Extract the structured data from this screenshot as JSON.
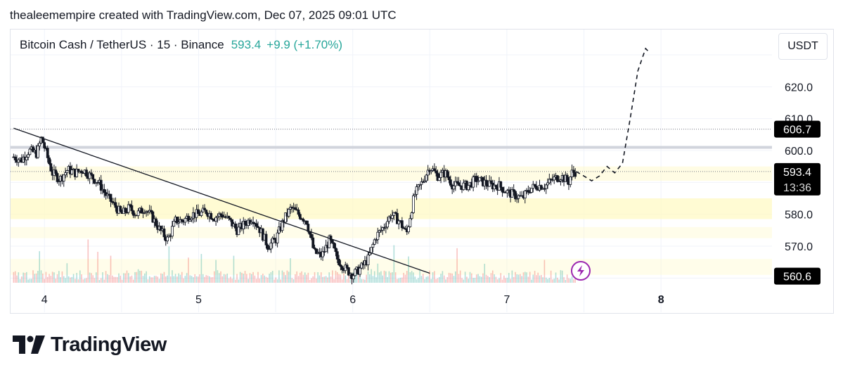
{
  "attribution": "thealeemempire created with TradingView.com, Dec 07, 2025 09:01 UTC",
  "legend": {
    "symbol": "Bitcoin Cash / TetherUS · 15 · Binance",
    "price": "593.4",
    "change": "+9.9 (+1.70%)"
  },
  "currency": "USDT",
  "brand": "TradingView",
  "colors": {
    "up": "#26a69a",
    "down": "#ef5350",
    "zone": "#fff9c4",
    "tag": "#000000",
    "signal": "#9c27b0"
  },
  "chart_data": {
    "type": "candlestick",
    "symbol": "BCHUSDT",
    "interval": "15",
    "exchange": "Binance",
    "x_ticks": [
      "4",
      "5",
      "6",
      "7",
      "8"
    ],
    "y_ticks": [
      "620.0",
      "610.0",
      "600.0",
      "580.0",
      "570.0"
    ],
    "y_range": [
      557,
      633
    ],
    "price_tags": [
      {
        "label": "606.7",
        "sub": "",
        "value": 606.7
      },
      {
        "label": "593.4",
        "sub": "13:36",
        "value": 593.4
      },
      {
        "label": "560.6",
        "sub": "",
        "value": 560.6
      }
    ],
    "horizontal_lines": [
      {
        "value": 606.7,
        "style": "dotted"
      },
      {
        "value": 601.0,
        "style": "solid-thick"
      },
      {
        "value": 593.4,
        "style": "dotted"
      }
    ],
    "zones": [
      {
        "from": 590.5,
        "to": 595.0,
        "opacity": 0.45
      },
      {
        "from": 578.5,
        "to": 585.0,
        "opacity": 0.75
      },
      {
        "from": 572.5,
        "to": 576.0,
        "opacity": 0.35
      },
      {
        "from": 561.0,
        "to": 566.0,
        "opacity": 0.35
      }
    ],
    "trendline": {
      "from": [
        3.8,
        607.0
      ],
      "to": [
        6.5,
        561.5
      ]
    },
    "close_path": [
      [
        3.8,
        598
      ],
      [
        3.85,
        597
      ],
      [
        3.9,
        600
      ],
      [
        3.95,
        599
      ],
      [
        3.98,
        604
      ],
      [
        4.0,
        601
      ],
      [
        4.05,
        593
      ],
      [
        4.1,
        591
      ],
      [
        4.15,
        594
      ],
      [
        4.2,
        593
      ],
      [
        4.25,
        594
      ],
      [
        4.3,
        592
      ],
      [
        4.35,
        590
      ],
      [
        4.4,
        586
      ],
      [
        4.45,
        583
      ],
      [
        4.5,
        580
      ],
      [
        4.55,
        582
      ],
      [
        4.6,
        580
      ],
      [
        4.65,
        582
      ],
      [
        4.7,
        579
      ],
      [
        4.75,
        575
      ],
      [
        4.8,
        572
      ],
      [
        4.85,
        578
      ],
      [
        4.9,
        578
      ],
      [
        4.95,
        580
      ],
      [
        5.0,
        580
      ],
      [
        5.05,
        581
      ],
      [
        5.1,
        579
      ],
      [
        5.15,
        580
      ],
      [
        5.2,
        578
      ],
      [
        5.25,
        575
      ],
      [
        5.3,
        577
      ],
      [
        5.35,
        579
      ],
      [
        5.4,
        575
      ],
      [
        5.45,
        570
      ],
      [
        5.5,
        572
      ],
      [
        5.55,
        578
      ],
      [
        5.6,
        582
      ],
      [
        5.65,
        580
      ],
      [
        5.7,
        578
      ],
      [
        5.75,
        568
      ],
      [
        5.8,
        567
      ],
      [
        5.85,
        572
      ],
      [
        5.9,
        566
      ],
      [
        5.95,
        563
      ],
      [
        6.0,
        561
      ],
      [
        6.05,
        563
      ],
      [
        6.1,
        566
      ],
      [
        6.15,
        573
      ],
      [
        6.2,
        576
      ],
      [
        6.25,
        580
      ],
      [
        6.3,
        578
      ],
      [
        6.35,
        574
      ],
      [
        6.4,
        586
      ],
      [
        6.45,
        590
      ],
      [
        6.5,
        595
      ],
      [
        6.55,
        592
      ],
      [
        6.6,
        593
      ],
      [
        6.65,
        589
      ],
      [
        6.7,
        589
      ],
      [
        6.75,
        589
      ],
      [
        6.8,
        591
      ],
      [
        6.85,
        590
      ],
      [
        6.9,
        589
      ],
      [
        6.95,
        589
      ],
      [
        7.0,
        587
      ],
      [
        7.05,
        586
      ],
      [
        7.1,
        585
      ],
      [
        7.15,
        588
      ],
      [
        7.2,
        589
      ],
      [
        7.25,
        589
      ],
      [
        7.3,
        591
      ],
      [
        7.35,
        592
      ],
      [
        7.38,
        591
      ],
      [
        7.4,
        590
      ],
      [
        7.42,
        593
      ],
      [
        7.45,
        593.4
      ]
    ],
    "projection": [
      [
        7.45,
        593.4
      ],
      [
        7.5,
        592
      ],
      [
        7.55,
        590.5
      ],
      [
        7.6,
        592
      ],
      [
        7.65,
        595
      ],
      [
        7.7,
        593
      ],
      [
        7.75,
        596
      ],
      [
        7.8,
        610
      ],
      [
        7.85,
        625
      ],
      [
        7.9,
        632
      ],
      [
        7.92,
        631
      ]
    ],
    "volume_range": [
      0,
      12
    ]
  }
}
